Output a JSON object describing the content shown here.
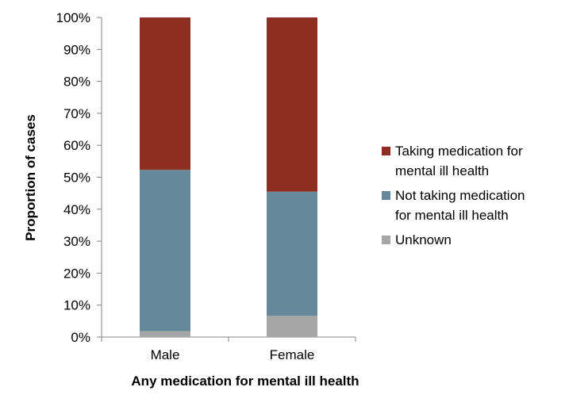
{
  "chart_data": {
    "type": "bar",
    "stacked": true,
    "percent_stacked": true,
    "categories": [
      "Male",
      "Female"
    ],
    "series": [
      {
        "name": "Unknown",
        "values": [
          1.8,
          6.7
        ],
        "color": "#a6a6a6"
      },
      {
        "name": "Not taking medication for mental ill health",
        "values": [
          50.5,
          38.8
        ],
        "color": "#66889b"
      },
      {
        "name": "Taking medication for mental ill health",
        "values": [
          47.7,
          54.5
        ],
        "color": "#8e2d22"
      }
    ],
    "legend": {
      "placement": "right",
      "entries": [
        {
          "lines": [
            "Taking medication for",
            "mental ill health"
          ],
          "color": "#8e2d22"
        },
        {
          "lines": [
            "Not taking medication",
            "for mental ill health"
          ],
          "color": "#66889b"
        },
        {
          "lines": [
            "Unknown"
          ],
          "color": "#a6a6a6"
        }
      ]
    },
    "xlabel": "Any medication for mental ill  health",
    "ylabel": "Proportion of cases",
    "ylim": [
      0,
      100
    ],
    "yticks": [
      "0%",
      "10%",
      "20%",
      "30%",
      "40%",
      "50%",
      "60%",
      "70%",
      "80%",
      "90%",
      "100%"
    ],
    "grid": false
  }
}
